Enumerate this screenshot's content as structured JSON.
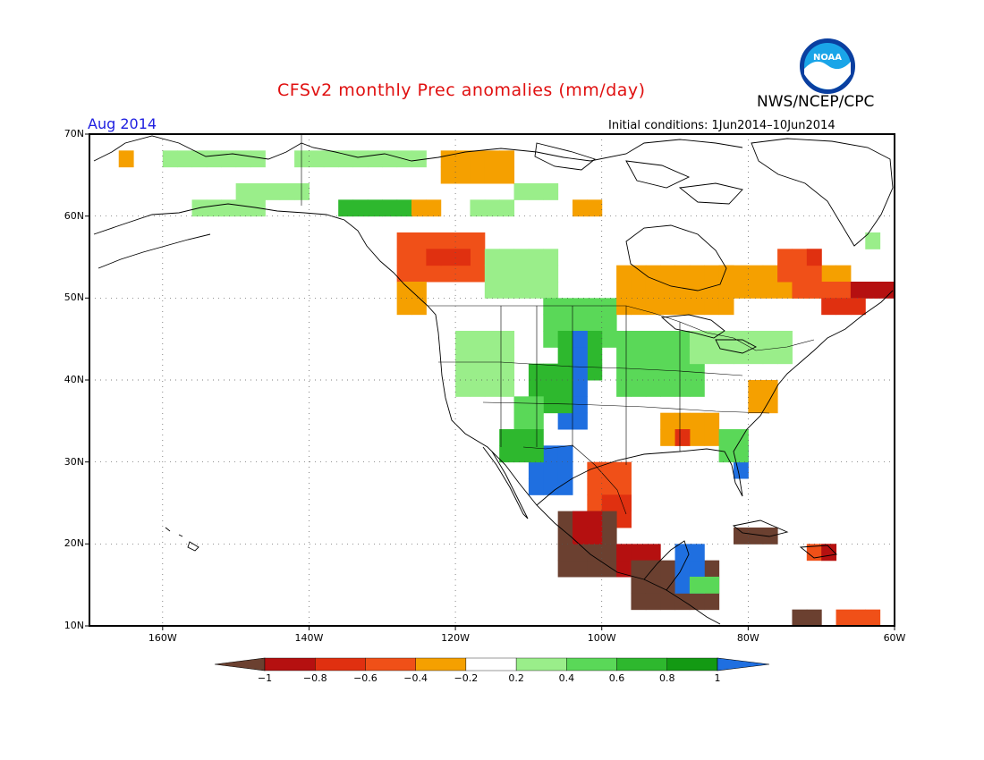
{
  "title": "CFSv2 monthly Prec anomalies (mm/day)",
  "agency": "NWS/NCEP/CPC",
  "valid_period": "Aug 2014",
  "initial_conditions": "Initial conditions: 1Jun2014–10Jun2014",
  "logo_text": "NOAA",
  "lat_labels": [
    "70N",
    "60N",
    "50N",
    "40N",
    "30N",
    "20N",
    "10N"
  ],
  "lon_labels": [
    "160W",
    "140W",
    "120W",
    "100W",
    "80W",
    "60W"
  ],
  "colorbar": {
    "labels": [
      "−1",
      "−0.8",
      "−0.6",
      "−0.4",
      "−0.2",
      "0.2",
      "0.4",
      "0.6",
      "0.8",
      "1"
    ],
    "colors": [
      "#6b4030",
      "#b51010",
      "#e03010",
      "#f05018",
      "#f5a000",
      "#ffffff",
      "#9aee8a",
      "#5ad858",
      "#2eb82e",
      "#139a13",
      "#1f6fe0"
    ]
  },
  "map": {
    "extent": {
      "lon_min": -170,
      "lon_max": -60,
      "lat_min": 10,
      "lat_max": 70
    },
    "grid": true
  }
}
